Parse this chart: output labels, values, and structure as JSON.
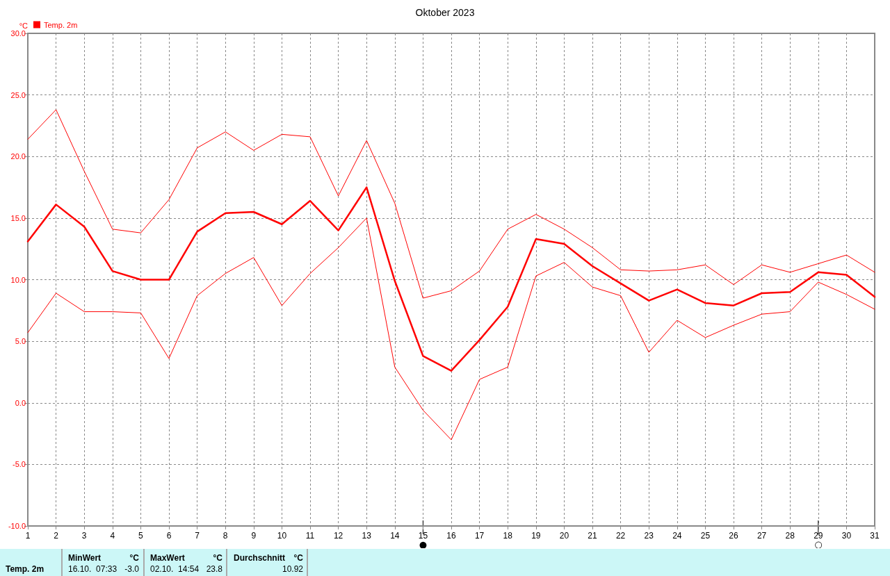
{
  "chart_data": {
    "type": "line",
    "title": "Oktober 2023",
    "ylabel": "°C",
    "x": [
      1,
      2,
      3,
      4,
      5,
      6,
      7,
      8,
      9,
      10,
      11,
      12,
      13,
      14,
      15,
      16,
      17,
      18,
      19,
      20,
      21,
      22,
      23,
      24,
      25,
      26,
      27,
      28,
      29,
      30,
      31
    ],
    "series": [
      {
        "color": "#ff0000",
        "values": [
          21.4,
          23.8,
          18.8,
          14.1,
          13.8,
          16.5,
          20.7,
          22.0,
          20.5,
          21.8,
          21.6,
          16.8,
          21.3,
          16.2,
          8.5,
          9.1,
          10.7,
          14.1,
          15.3,
          14.1,
          12.6,
          10.8,
          10.7,
          10.8,
          11.2,
          9.6,
          11.2,
          10.6,
          11.3,
          12.0,
          10.6
        ]
      },
      {
        "name": "Temp. 2m",
        "color": "#ff0000",
        "values": [
          13.1,
          16.1,
          14.3,
          10.7,
          10.0,
          10.0,
          13.9,
          15.4,
          15.5,
          14.5,
          16.4,
          14.0,
          17.5,
          9.9,
          3.8,
          2.6,
          5.1,
          7.8,
          13.3,
          12.9,
          11.1,
          9.7,
          8.3,
          9.2,
          8.1,
          7.9,
          8.9,
          9.0,
          10.6,
          10.4,
          8.6
        ]
      },
      {
        "color": "#ff0000",
        "values": [
          5.7,
          8.9,
          7.4,
          7.4,
          7.3,
          3.6,
          8.7,
          10.5,
          11.8,
          7.9,
          10.5,
          12.6,
          15.0,
          2.9,
          -0.6,
          -3.0,
          1.9,
          2.9,
          10.3,
          11.4,
          9.4,
          8.7,
          4.1,
          6.7,
          5.3,
          6.3,
          7.2,
          7.4,
          9.8,
          8.8,
          7.6
        ]
      }
    ],
    "xlim": [
      1,
      31
    ],
    "xticks": [
      1,
      2,
      3,
      4,
      5,
      6,
      7,
      8,
      9,
      10,
      11,
      12,
      13,
      14,
      15,
      16,
      17,
      18,
      19,
      20,
      21,
      22,
      23,
      24,
      25,
      26,
      27,
      28,
      29,
      30,
      31
    ],
    "ylim": [
      -10,
      30
    ],
    "yticks": [
      {
        "value": -10,
        "label": "-10.0"
      },
      {
        "value": -5,
        "label": "-5.0"
      },
      {
        "value": 0,
        "label": "0.0"
      },
      {
        "value": 5,
        "label": "5.0"
      },
      {
        "value": 10,
        "label": "10.0"
      },
      {
        "value": 15,
        "label": "15.0"
      },
      {
        "value": 20,
        "label": "20.0"
      },
      {
        "value": 25,
        "label": "25.0"
      },
      {
        "value": 30,
        "label": "30.0"
      }
    ],
    "ref_lines": [
      {
        "axis": "x",
        "value": 15,
        "label": "●"
      },
      {
        "axis": "x",
        "value": 29,
        "label": "○"
      }
    ],
    "grid": true,
    "legend": "top left",
    "marker": "none",
    "line_style": "solid",
    "annotations": [
      "Temp. 2m",
      "MinWert",
      "°C",
      "16.10.  07:33",
      "-3.0",
      "MaxWert",
      "°C",
      "02.10.  14:54",
      "23.8",
      "Durchschnitt",
      "°C",
      "10.92"
    ]
  }
}
